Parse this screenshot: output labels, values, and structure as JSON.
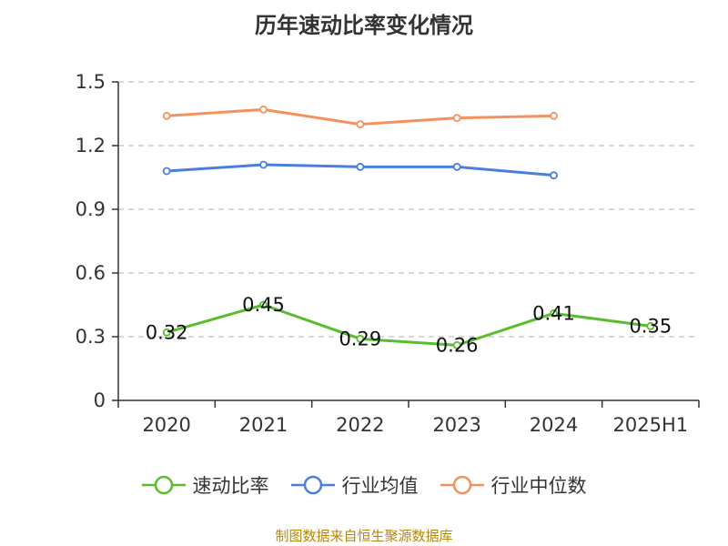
{
  "title": "历年速动比率变化情况",
  "source": "制图数据来自恒生聚源数据库",
  "colors": {
    "source_text": "#b8860b"
  },
  "chart_data": {
    "type": "line",
    "title": "历年速动比率变化情况",
    "categories": [
      "2020",
      "2021",
      "2022",
      "2023",
      "2024",
      "2025H1"
    ],
    "ylim": [
      0,
      1.5
    ],
    "yticks": [
      0,
      0.3,
      0.6,
      0.9,
      1.2,
      1.5
    ],
    "ytick_labels": [
      "0",
      "0.3",
      "0.6",
      "0.9",
      "1.2",
      "1.5"
    ],
    "grid": true,
    "legend_position": "bottom",
    "series": [
      {
        "name": "速动比率",
        "color": "#5bbd2b",
        "values": [
          0.32,
          0.45,
          0.29,
          0.26,
          0.41,
          0.35
        ],
        "labels": [
          "0.32",
          "0.45",
          "0.29",
          "0.26",
          "0.41",
          "0.35"
        ]
      },
      {
        "name": "行业均值",
        "color": "#4a7fdb",
        "values": [
          1.08,
          1.11,
          1.1,
          1.1,
          1.06,
          null
        ]
      },
      {
        "name": "行业中位数",
        "color": "#f4915e",
        "values": [
          1.34,
          1.37,
          1.3,
          1.33,
          1.34,
          null
        ]
      }
    ]
  }
}
